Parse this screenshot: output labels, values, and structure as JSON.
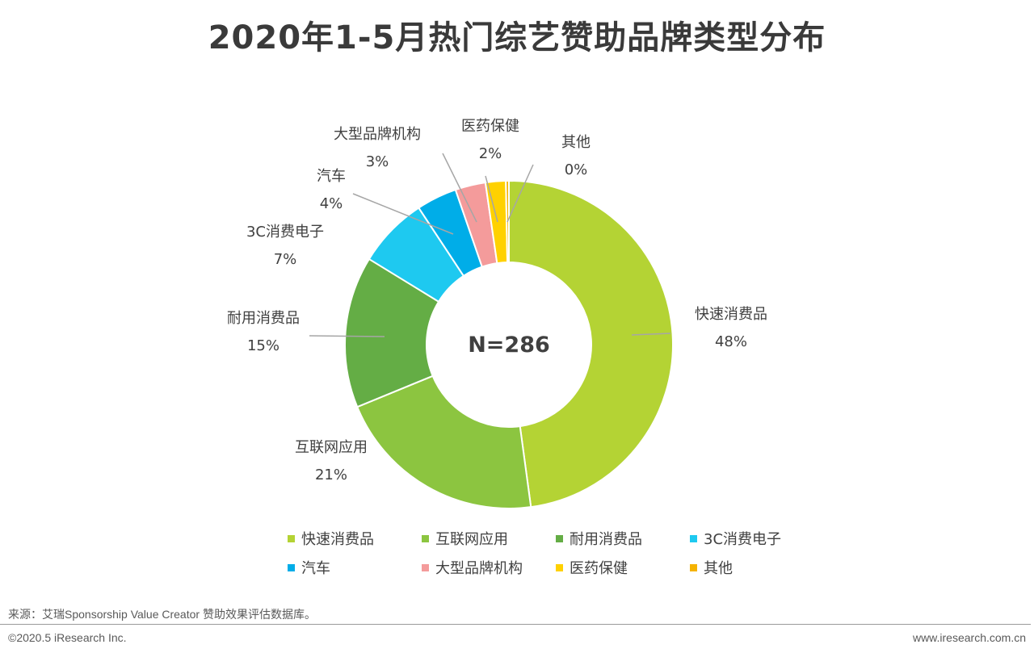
{
  "title": "2020年1-5月热门综艺赞助品牌类型分布",
  "chart_data": {
    "type": "pie",
    "title": "2020年1-5月热门综艺赞助品牌类型分布",
    "center_label": "N=286",
    "categories": [
      "快速消费品",
      "互联网应用",
      "耐用消费品",
      "3C消费电子",
      "汽车",
      "大型品牌机构",
      "医药保健",
      "其他"
    ],
    "values": [
      48,
      21,
      15,
      7,
      4,
      3,
      2,
      0
    ],
    "value_labels": [
      "48%",
      "21%",
      "15%",
      "7%",
      "4%",
      "3%",
      "2%",
      "0%"
    ],
    "colors": [
      "#b4d334",
      "#8cc540",
      "#64ad45",
      "#1ec9f0",
      "#00ade8",
      "#f49b9b",
      "#ffd100",
      "#f5b300"
    ],
    "legend_placement": "bottom"
  },
  "footer": {
    "source": "来源：艾瑞Sponsorship Value Creator 赞助效果评估数据库。",
    "copyright": "©2020.5 iResearch Inc.",
    "website": "www.iresearch.com.cn"
  }
}
